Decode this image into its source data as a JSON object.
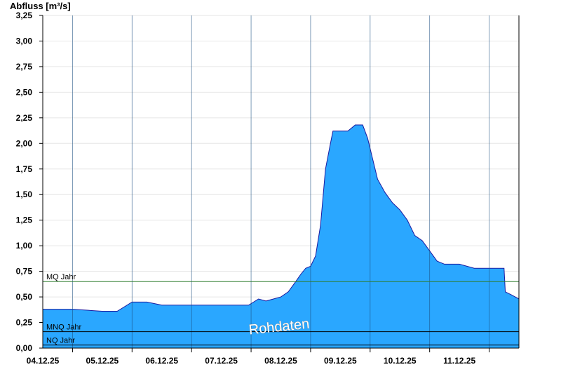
{
  "chart_data": {
    "type": "area",
    "ylabel": "Abfluss [m³/s]",
    "ylim": [
      0,
      3.25
    ],
    "yticks": [
      0,
      0.25,
      0.5,
      0.75,
      1.0,
      1.25,
      1.5,
      1.75,
      2.0,
      2.25,
      2.5,
      2.75,
      3.0,
      3.25
    ],
    "ytick_labels": [
      "0,00",
      "0,25",
      "0,50",
      "0,75",
      "1,00",
      "1,25",
      "1,50",
      "1,75",
      "2,00",
      "2,25",
      "2,50",
      "2,75",
      "3,00",
      "3,25"
    ],
    "xlim": [
      "2025-12-03T12:00",
      "2025-12-11T12:00"
    ],
    "xtick_labels": [
      "04.12.25",
      "05.12.25",
      "06.12.25",
      "07.12.25",
      "08.12.25",
      "09.12.25",
      "10.12.25",
      "11.12.25"
    ],
    "fill_color": "#2aa7ff",
    "line_color": "#1a1aa0",
    "grid": true,
    "series": [
      {
        "x": [
          "2025-12-03T12:00",
          "2025-12-04T00:00",
          "2025-12-04T06:00",
          "2025-12-04T12:00",
          "2025-12-04T18:00",
          "2025-12-05T00:00",
          "2025-12-05T06:00",
          "2025-12-05T12:00",
          "2025-12-05T18:00",
          "2025-12-06T00:00",
          "2025-12-06T06:00",
          "2025-12-06T12:00",
          "2025-12-06T18:00",
          "2025-12-06T23:00",
          "2025-12-07T03:00",
          "2025-12-07T06:00",
          "2025-12-07T09:00",
          "2025-12-07T12:00",
          "2025-12-07T15:00",
          "2025-12-07T18:00",
          "2025-12-07T20:00",
          "2025-12-07T22:00",
          "2025-12-08T00:00",
          "2025-12-08T02:00",
          "2025-12-08T04:00",
          "2025-12-08T06:00",
          "2025-12-08T08:00",
          "2025-12-08T09:00",
          "2025-12-08T12:00",
          "2025-12-08T15:00",
          "2025-12-08T18:00",
          "2025-12-08T21:00",
          "2025-12-08T23:00",
          "2025-12-09T01:00",
          "2025-12-09T03:00",
          "2025-12-09T06:00",
          "2025-12-09T09:00",
          "2025-12-09T12:00",
          "2025-12-09T15:00",
          "2025-12-09T18:00",
          "2025-12-09T21:00",
          "2025-12-10T00:00",
          "2025-12-10T03:00",
          "2025-12-10T06:00",
          "2025-12-10T09:00",
          "2025-12-10T12:00",
          "2025-12-10T18:00",
          "2025-12-11T00:00",
          "2025-12-11T06:00",
          "2025-12-11T06:30",
          "2025-12-11T09:00",
          "2025-12-11T12:00"
        ],
        "values": [
          0.38,
          0.38,
          0.37,
          0.36,
          0.36,
          0.45,
          0.45,
          0.42,
          0.42,
          0.42,
          0.42,
          0.42,
          0.42,
          0.42,
          0.48,
          0.46,
          0.48,
          0.5,
          0.55,
          0.65,
          0.72,
          0.78,
          0.8,
          0.9,
          1.2,
          1.75,
          2.0,
          2.12,
          2.12,
          2.12,
          2.18,
          2.18,
          2.05,
          1.85,
          1.65,
          1.52,
          1.42,
          1.35,
          1.25,
          1.1,
          1.05,
          0.95,
          0.85,
          0.82,
          0.82,
          0.82,
          0.78,
          0.78,
          0.78,
          0.55,
          0.52,
          0.48
        ]
      }
    ],
    "reference_lines": [
      {
        "label": "MQ Jahr",
        "value": 0.65,
        "color": "#2e7d2e"
      },
      {
        "label": "MNQ Jahr",
        "value": 0.16,
        "color": "#000000"
      },
      {
        "label": "NQ Jahr",
        "value": 0.03,
        "color": "#000000"
      }
    ],
    "watermark": "Rohdaten"
  }
}
